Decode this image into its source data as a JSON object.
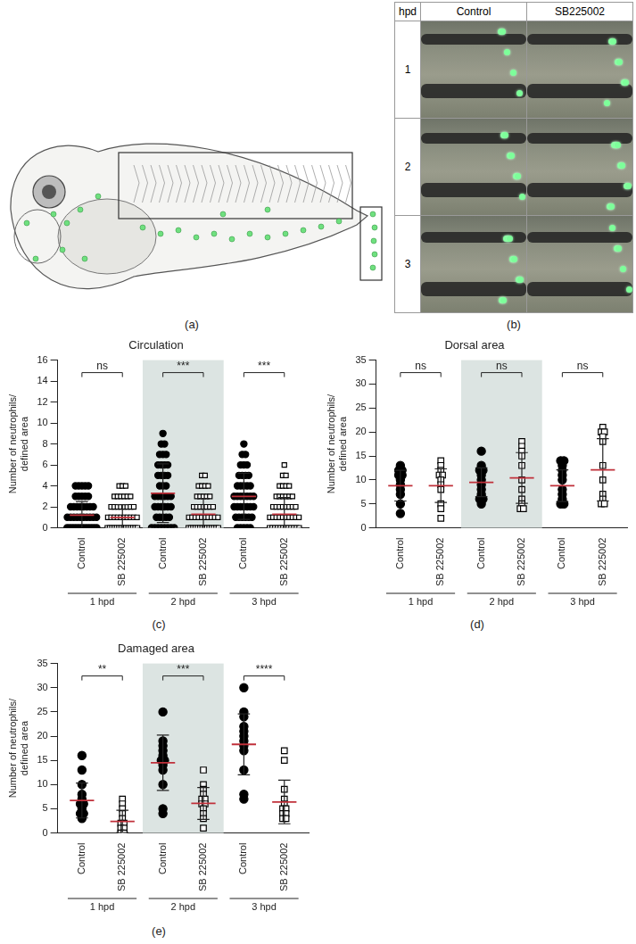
{
  "figure": {
    "a": {
      "label": "(a)"
    },
    "b": {
      "label": "(b)",
      "header": [
        "hpd",
        "Control",
        "SB225002"
      ],
      "rows": [
        "1",
        "2",
        "3"
      ]
    }
  },
  "chart_data": [
    {
      "type": "scatter",
      "panel": "(c)",
      "title": "Circulation",
      "y_label": [
        "Number of neutrophils/",
        "defined area"
      ],
      "categories": [
        "Control",
        "SB 225002",
        "Control",
        "SB 225002",
        "Control",
        "SB 225002"
      ],
      "groups": [
        "1 hpd",
        "2 hpd",
        "3 hpd"
      ],
      "shaded_group": "2 hpd",
      "significance": [
        "ns",
        "***",
        "***"
      ],
      "ylim": [
        0,
        16
      ],
      "yticks": [
        0,
        2,
        4,
        6,
        8,
        10,
        12,
        14,
        16
      ],
      "grid": false,
      "series": [
        {
          "name": "Control",
          "color": "#000000",
          "marker": "circle",
          "values": [
            [
              0,
              0,
              0,
              0,
              0,
              0,
              0,
              0,
              0,
              0,
              0,
              0,
              1,
              1,
              1,
              1,
              1,
              1,
              1,
              1,
              1,
              1,
              2,
              2,
              2,
              2,
              2,
              2,
              2,
              2,
              3,
              3,
              3,
              3,
              3,
              4,
              4,
              4,
              4,
              4
            ],
            [
              0,
              0,
              0,
              0,
              0,
              0,
              0,
              0,
              1,
              1,
              1,
              1,
              1,
              2,
              2,
              2,
              2,
              2,
              2,
              3,
              3,
              3,
              3,
              3,
              3,
              4,
              4,
              4,
              5,
              5,
              5,
              5,
              6,
              6,
              6,
              6,
              7,
              7,
              7,
              8,
              8,
              9
            ],
            [
              0,
              0,
              0,
              0,
              0,
              1,
              1,
              1,
              1,
              1,
              1,
              2,
              2,
              2,
              2,
              2,
              2,
              2,
              3,
              3,
              3,
              3,
              3,
              3,
              3,
              4,
              4,
              4,
              4,
              4,
              5,
              5,
              5,
              5,
              6,
              6,
              6,
              7,
              7,
              8
            ]
          ],
          "mean": [
            1.2,
            3.3,
            3.0
          ],
          "sd": [
            1.3,
            2.8,
            2.2
          ]
        },
        {
          "name": "SB 225002",
          "color": "#000000",
          "marker": "open_square",
          "values": [
            [
              0,
              0,
              0,
              0,
              0,
              0,
              0,
              0,
              0,
              0,
              0,
              0,
              0,
              0,
              1,
              1,
              1,
              1,
              1,
              1,
              1,
              1,
              1,
              1,
              2,
              2,
              2,
              2,
              2,
              2,
              2,
              2,
              3,
              3,
              3,
              3,
              3,
              3,
              4,
              4,
              4
            ],
            [
              0,
              0,
              0,
              0,
              0,
              0,
              0,
              0,
              0,
              0,
              0,
              0,
              0,
              0,
              1,
              1,
              1,
              1,
              1,
              1,
              1,
              1,
              1,
              1,
              2,
              2,
              2,
              2,
              2,
              2,
              2,
              3,
              3,
              3,
              3,
              3,
              4,
              4,
              4,
              4,
              5,
              5
            ],
            [
              0,
              0,
              0,
              0,
              0,
              0,
              0,
              0,
              0,
              0,
              0,
              0,
              1,
              1,
              1,
              1,
              1,
              1,
              1,
              1,
              1,
              1,
              2,
              2,
              2,
              2,
              2,
              2,
              2,
              2,
              3,
              3,
              3,
              3,
              3,
              3,
              4,
              4,
              4,
              4,
              5,
              5,
              6
            ]
          ],
          "mean": [
            1.0,
            1.3,
            1.3
          ],
          "sd": [
            1.2,
            1.5,
            1.6
          ]
        }
      ]
    },
    {
      "type": "scatter",
      "panel": "(d)",
      "title": "Dorsal area",
      "y_label": [
        "Number of neutrophils/",
        "defined area"
      ],
      "categories": [
        "Control",
        "SB 225002",
        "Control",
        "SB 225002",
        "Control",
        "SB 225002"
      ],
      "groups": [
        "1 hpd",
        "2 hpd",
        "3 hpd"
      ],
      "shaded_group": "2 hpd",
      "significance": [
        "ns",
        "ns",
        "ns"
      ],
      "ylim": [
        0,
        35
      ],
      "yticks": [
        0,
        5,
        10,
        15,
        20,
        25,
        30,
        35
      ],
      "grid": false,
      "series": [
        {
          "name": "Control",
          "color": "#000000",
          "marker": "circle",
          "values": [
            [
              13,
              12,
              12,
              11,
              11,
              10,
              9,
              8,
              7,
              5,
              3
            ],
            [
              16,
              13,
              12,
              12,
              11,
              10,
              9,
              8,
              7,
              6,
              6,
              5
            ],
            [
              14,
              14,
              13,
              12,
              11,
              10,
              8,
              7,
              6,
              5,
              5
            ]
          ],
          "mean": [
            8.8,
            9.5,
            8.8
          ],
          "sd": [
            3.2,
            3.0,
            3.3
          ]
        },
        {
          "name": "SB 225002",
          "color": "#000000",
          "marker": "open_square",
          "values": [
            [
              14,
              13,
              12,
              11,
              11,
              10,
              9,
              8,
              5,
              4,
              2
            ],
            [
              18,
              17,
              16,
              15,
              13,
              10,
              8,
              6,
              5,
              4,
              4
            ],
            [
              21,
              20,
              20,
              19,
              18,
              13,
              10,
              7,
              6,
              5,
              5
            ]
          ],
          "mean": [
            8.8,
            10.4,
            12.1
          ],
          "sd": [
            3.5,
            5.3,
            6.5
          ]
        }
      ]
    },
    {
      "type": "scatter",
      "panel": "(e)",
      "title": "Damaged area",
      "y_label": [
        "Number of neutrophils/",
        "defined area"
      ],
      "categories": [
        "Control",
        "SB 225002",
        "Control",
        "SB 225002",
        "Control",
        "SB 225002"
      ],
      "groups": [
        "1 hpd",
        "2 hpd",
        "3 hpd"
      ],
      "shaded_group": "2 hpd",
      "significance": [
        "**",
        "***",
        "****"
      ],
      "ylim": [
        0,
        35
      ],
      "yticks": [
        0,
        5,
        10,
        15,
        20,
        25,
        30,
        35
      ],
      "grid": false,
      "series": [
        {
          "name": "Control",
          "color": "#000000",
          "marker": "circle",
          "values": [
            [
              16,
              13,
              10,
              8,
              7,
              6,
              6,
              5,
              4,
              4,
              3
            ],
            [
              25,
              19,
              18,
              17,
              16,
              15,
              15,
              14,
              13,
              10,
              5,
              4
            ],
            [
              30,
              25,
              24,
              22,
              21,
              20,
              19,
              18,
              17,
              13,
              8,
              7
            ]
          ],
          "mean": [
            6.7,
            14.5,
            18.3
          ],
          "sd": [
            3.6,
            5.7,
            6.3
          ]
        },
        {
          "name": "SB 225002",
          "color": "#000000",
          "marker": "open_square",
          "values": [
            [
              7,
              6,
              5,
              4,
              3,
              2,
              2,
              1,
              1,
              0,
              0
            ],
            [
              13,
              10,
              9,
              8,
              7,
              7,
              6,
              6,
              5,
              4,
              3,
              1
            ],
            [
              17,
              15,
              9,
              7,
              6,
              5,
              5,
              4,
              4,
              3,
              3
            ]
          ],
          "mean": [
            2.4,
            6.1,
            6.4
          ],
          "sd": [
            2.3,
            3.3,
            4.5
          ]
        }
      ]
    }
  ]
}
